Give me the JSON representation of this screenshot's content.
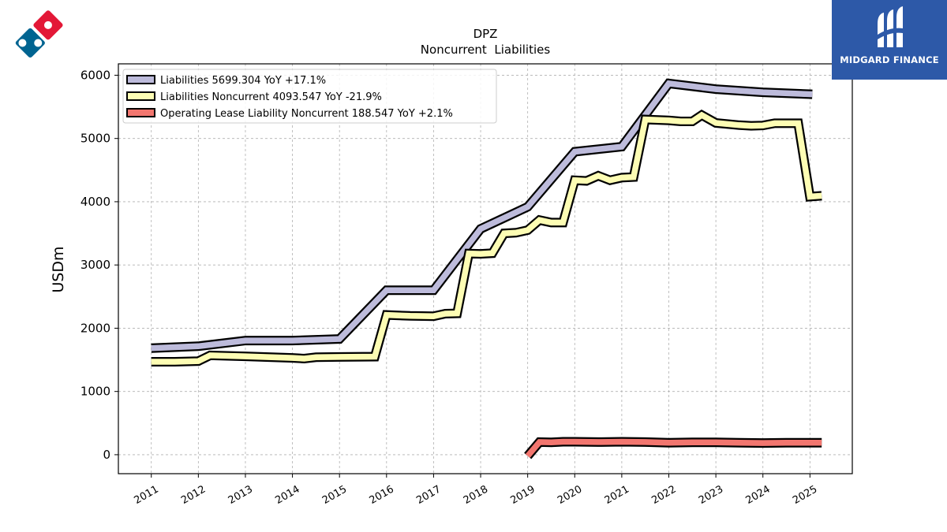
{
  "brand": {
    "name": "MIDGARD FINANCE",
    "color": "#2d59a8"
  },
  "company_logo": {
    "name": "domino-logo",
    "colors": [
      "#e31837",
      "#006491"
    ]
  },
  "chart_data": {
    "type": "line",
    "title": "DPZ",
    "subtitle": "Noncurrent  Liabilities",
    "ylabel": "USDm",
    "xlabel": "",
    "ylim": [
      -300,
      6180
    ],
    "xlim": [
      2010.3,
      2025.9
    ],
    "yticks": [
      0,
      1000,
      2000,
      3000,
      4000,
      5000,
      6000
    ],
    "xticks": [
      2011,
      2012,
      2013,
      2014,
      2015,
      2016,
      2017,
      2018,
      2019,
      2020,
      2021,
      2022,
      2023,
      2024,
      2025
    ],
    "grid": true,
    "legend_position": "top-left",
    "series": [
      {
        "name": "Liabilities  5699.304 YoY +17.1%",
        "color": "#bdbbdb",
        "points": [
          [
            2011.0,
            1685
          ],
          [
            2012.0,
            1715
          ],
          [
            2013.0,
            1805
          ],
          [
            2014.0,
            1805
          ],
          [
            2015.0,
            1830
          ],
          [
            2016.0,
            2600
          ],
          [
            2017.0,
            2600
          ],
          [
            2018.0,
            3570
          ],
          [
            2019.0,
            3920
          ],
          [
            2020.0,
            4790
          ],
          [
            2021.0,
            4870
          ],
          [
            2022.0,
            5870
          ],
          [
            2023.0,
            5780
          ],
          [
            2024.0,
            5730
          ],
          [
            2025.05,
            5699
          ]
        ]
      },
      {
        "name": "Liabilities Noncurrent  4093.547 YoY -21.9%",
        "color": "#fdfdb4",
        "points": [
          [
            2011.0,
            1470
          ],
          [
            2011.5,
            1470
          ],
          [
            2012.0,
            1480
          ],
          [
            2012.25,
            1570
          ],
          [
            2013.0,
            1555
          ],
          [
            2014.0,
            1530
          ],
          [
            2014.25,
            1520
          ],
          [
            2014.5,
            1540
          ],
          [
            2015.0,
            1545
          ],
          [
            2015.75,
            1550
          ],
          [
            2016.0,
            2210
          ],
          [
            2016.5,
            2195
          ],
          [
            2017.0,
            2190
          ],
          [
            2017.25,
            2230
          ],
          [
            2017.5,
            2235
          ],
          [
            2017.75,
            3180
          ],
          [
            2018.0,
            3175
          ],
          [
            2018.25,
            3185
          ],
          [
            2018.5,
            3500
          ],
          [
            2018.75,
            3510
          ],
          [
            2019.0,
            3550
          ],
          [
            2019.25,
            3710
          ],
          [
            2019.5,
            3670
          ],
          [
            2019.75,
            3670
          ],
          [
            2020.0,
            4340
          ],
          [
            2020.25,
            4330
          ],
          [
            2020.5,
            4410
          ],
          [
            2020.75,
            4340
          ],
          [
            2021.0,
            4380
          ],
          [
            2021.25,
            4390
          ],
          [
            2021.5,
            5300
          ],
          [
            2022.0,
            5285
          ],
          [
            2022.25,
            5270
          ],
          [
            2022.5,
            5270
          ],
          [
            2022.7,
            5370
          ],
          [
            2023.0,
            5245
          ],
          [
            2023.5,
            5210
          ],
          [
            2023.75,
            5200
          ],
          [
            2024.0,
            5205
          ],
          [
            2024.25,
            5240
          ],
          [
            2024.75,
            5240
          ],
          [
            2025.0,
            4080
          ],
          [
            2025.25,
            4094
          ]
        ]
      },
      {
        "name": "Operating Lease Liability Noncurrent  188.547 YoY +2.1%",
        "color": "#f2766f",
        "points": [
          [
            2019.0,
            -20
          ],
          [
            2019.25,
            200
          ],
          [
            2019.5,
            195
          ],
          [
            2019.75,
            205
          ],
          [
            2020.0,
            205
          ],
          [
            2020.5,
            200
          ],
          [
            2021.0,
            205
          ],
          [
            2021.5,
            200
          ],
          [
            2022.0,
            190
          ],
          [
            2022.5,
            195
          ],
          [
            2023.0,
            195
          ],
          [
            2023.5,
            190
          ],
          [
            2024.0,
            185
          ],
          [
            2024.5,
            190
          ],
          [
            2025.0,
            190
          ],
          [
            2025.25,
            189
          ]
        ]
      }
    ]
  }
}
